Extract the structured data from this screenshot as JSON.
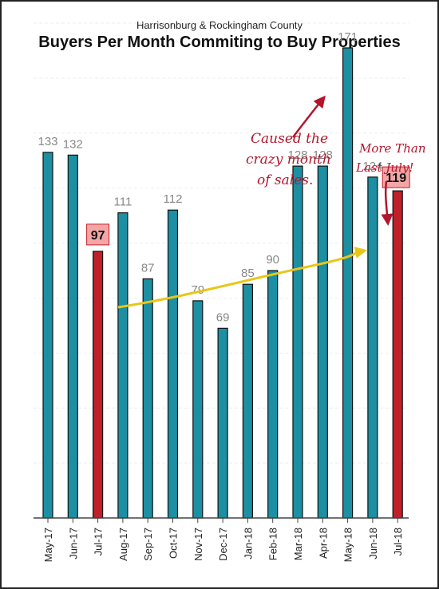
{
  "header": {
    "subtitle": "Harrisonburg & Rockingham County",
    "title": "Buyers Per Month Commiting to Buy Properties"
  },
  "annotations": {
    "crazy_month": [
      "Caused the",
      "crazy month",
      "of sales."
    ],
    "more_than": [
      "More Than",
      "Last July!"
    ]
  },
  "colors": {
    "bar": "#1d8fa3",
    "highlight": "#c0202a",
    "label_box": "#f4a6a6",
    "arrow": "#e8c619",
    "note": "#b3162c"
  },
  "chart_data": {
    "type": "bar",
    "title": "Buyers Per Month Commiting to Buy Properties",
    "subtitle": "Harrisonburg & Rockingham County",
    "categories": [
      "May-17",
      "Jun-17",
      "Jul-17",
      "Aug-17",
      "Sep-17",
      "Oct-17",
      "Nov-17",
      "Dec-17",
      "Jan-18",
      "Feb-18",
      "Mar-18",
      "Apr-18",
      "May-18",
      "Jun-18",
      "Jul-18"
    ],
    "values": [
      133,
      132,
      97,
      111,
      87,
      112,
      79,
      69,
      85,
      90,
      128,
      128,
      171,
      124,
      119
    ],
    "highlighted": [
      "Jul-17",
      "Jul-18"
    ],
    "xlabel": "",
    "ylabel": "",
    "ylim": [
      0,
      180
    ],
    "grid": true,
    "legend": "none"
  }
}
